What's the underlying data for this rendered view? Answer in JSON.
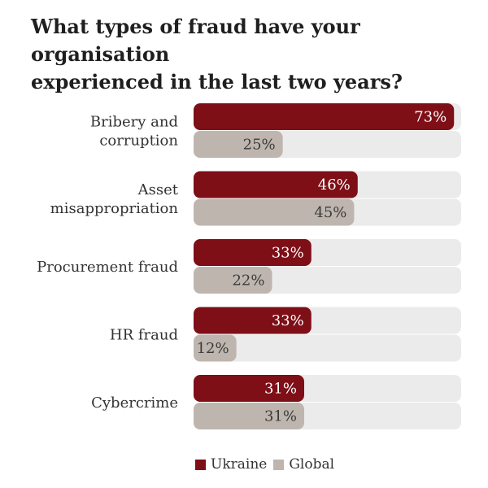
{
  "colors": {
    "ukraine": "#7e0f17",
    "global": "#beb6ae",
    "track": "#ebebeb",
    "bar_text": "#ffffff",
    "global_text": "#3a3a3a",
    "category_text": "#333333"
  },
  "chart_data": {
    "type": "bar",
    "orientation": "horizontal",
    "title": "What types of fraud have your organisation experienced in the last two years?",
    "title_lines": [
      "What types of fraud have your organisation",
      "experienced in the last two years?"
    ],
    "categories": [
      [
        "Bribery and",
        "corruption"
      ],
      [
        "Asset",
        "misappropriation"
      ],
      [
        "Procurement fraud"
      ],
      [
        "HR fraud"
      ],
      [
        "Cybercrime"
      ]
    ],
    "series": [
      {
        "name": "Ukraine",
        "values": [
          73,
          46,
          33,
          33,
          31
        ],
        "labels": [
          "73%",
          "46%",
          "33%",
          "33%",
          "31%"
        ]
      },
      {
        "name": "Global",
        "values": [
          25,
          45,
          22,
          12,
          31
        ],
        "labels": [
          "25%",
          "45%",
          "22%",
          "12%",
          "31%"
        ]
      }
    ],
    "xlim": [
      0,
      75
    ],
    "unit": "%",
    "legend": "bottom"
  }
}
